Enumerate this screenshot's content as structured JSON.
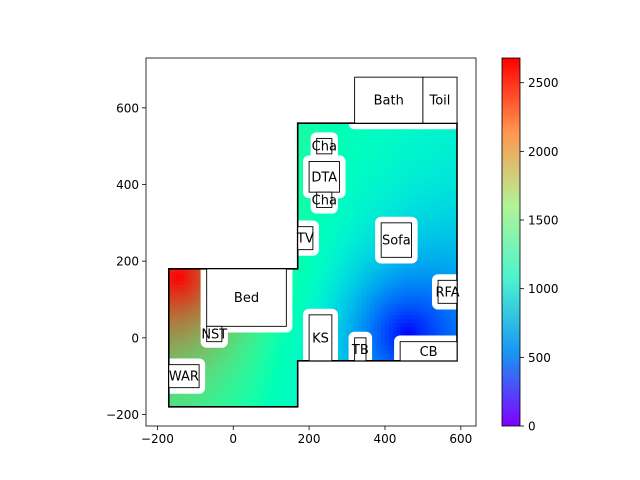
{
  "chart_data": {
    "type": "heatmap",
    "title": "",
    "xlabel": "",
    "ylabel": "",
    "xlim": [
      -230,
      640
    ],
    "ylim": [
      -230,
      730
    ],
    "x_ticks": [
      -200,
      0,
      200,
      400,
      600
    ],
    "x_tick_labels": [
      "−200",
      "0",
      "200",
      "400",
      "600"
    ],
    "y_ticks": [
      -200,
      0,
      200,
      400,
      600
    ],
    "y_tick_labels": [
      "−200",
      "0",
      "200",
      "400",
      "600"
    ],
    "grid": false,
    "colormap": "rainbow",
    "colorbar": {
      "range": [
        0,
        2680
      ],
      "ticks": [
        0,
        500,
        1000,
        1500,
        2000,
        2500
      ],
      "tick_labels": [
        "0",
        "500",
        "1000",
        "1500",
        "2000",
        "2500"
      ]
    },
    "field_sources": [
      {
        "x": 460,
        "y": 10,
        "value": 0
      },
      {
        "x": -145,
        "y": 160,
        "value": 2680
      }
    ],
    "walls": [
      [
        [
          -170,
          180
        ],
        [
          170,
          180
        ],
        [
          170,
          560
        ],
        [
          590,
          560
        ],
        [
          590,
          -60
        ],
        [
          170,
          -60
        ],
        [
          170,
          -180
        ],
        [
          -170,
          -180
        ],
        [
          -170,
          180
        ]
      ]
    ],
    "furniture": [
      {
        "label": "Bath",
        "x0": 320,
        "y0": 560,
        "x1": 500,
        "y1": 680
      },
      {
        "label": "Toil",
        "x0": 500,
        "y0": 560,
        "x1": 590,
        "y1": 680
      },
      {
        "label": "Cha",
        "x0": 220,
        "y0": 480,
        "x1": 260,
        "y1": 520
      },
      {
        "label": "DTA",
        "x0": 200,
        "y0": 380,
        "x1": 280,
        "y1": 460
      },
      {
        "label": "Cha",
        "x0": 220,
        "y0": 340,
        "x1": 260,
        "y1": 380
      },
      {
        "label": "TV",
        "x0": 170,
        "y0": 230,
        "x1": 210,
        "y1": 290
      },
      {
        "label": "Sofa",
        "x0": 390,
        "y0": 210,
        "x1": 470,
        "y1": 300
      },
      {
        "label": "Bed",
        "x0": -70,
        "y0": 30,
        "x1": 140,
        "y1": 180
      },
      {
        "label": "RFA",
        "x0": 540,
        "y0": 90,
        "x1": 590,
        "y1": 150
      },
      {
        "label": "NST",
        "x0": -70,
        "y0": -10,
        "x1": -30,
        "y1": 30
      },
      {
        "label": "KS",
        "x0": 200,
        "y0": -60,
        "x1": 260,
        "y1": 60
      },
      {
        "label": "TB",
        "x0": 320,
        "y0": -60,
        "x1": 350,
        "y1": 0
      },
      {
        "label": "CB",
        "x0": 440,
        "y0": -60,
        "x1": 590,
        "y1": -10
      },
      {
        "label": "WAR",
        "x0": -170,
        "y0": -130,
        "x1": -90,
        "y1": -70
      }
    ]
  }
}
